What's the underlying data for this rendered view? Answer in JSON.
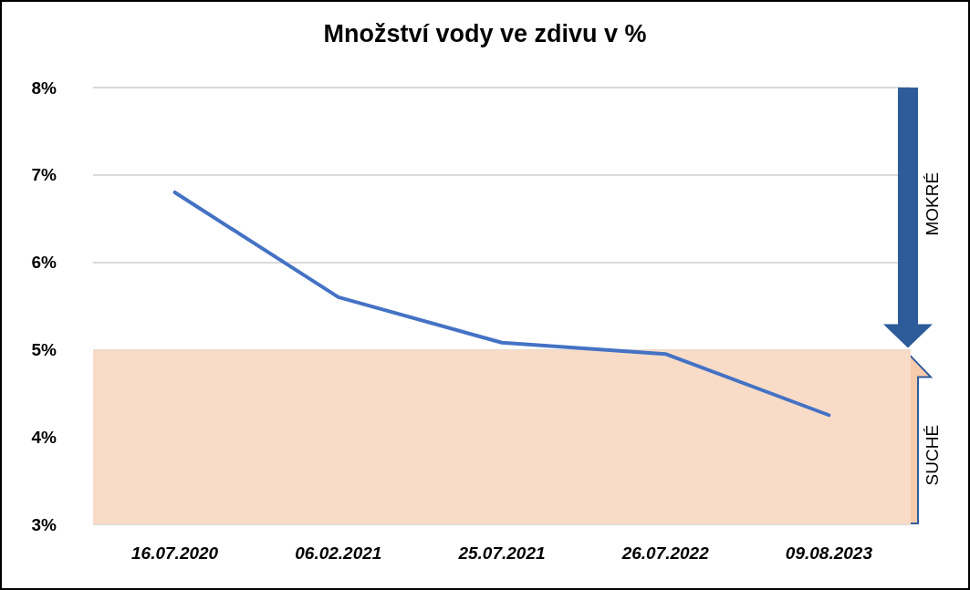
{
  "chart_data": {
    "type": "line",
    "title": "Množství vody ve zdivu v %",
    "categories": [
      "16.07.2020",
      "06.02.2021",
      "25.07.2021",
      "26.07.2022",
      "09.08.2023"
    ],
    "series": [
      {
        "color": "#4472c4",
        "values": [
          6.8,
          5.6,
          5.08,
          4.95,
          4.25
        ]
      }
    ],
    "ylim": [
      3,
      8
    ],
    "yticks": [
      {
        "value": 3,
        "label": "3%"
      },
      {
        "value": 4,
        "label": "4%"
      },
      {
        "value": 5,
        "label": "5%"
      },
      {
        "value": 6,
        "label": "6%"
      },
      {
        "value": 7,
        "label": "7%"
      },
      {
        "value": 8,
        "label": "8%"
      }
    ],
    "grid": "y",
    "marker": "none",
    "line_style": "solid",
    "bands": [
      {
        "axis": "y",
        "from": 3,
        "to": 5,
        "label": "SUCHÉ",
        "color": "#f8dcc8"
      }
    ],
    "annotations": [
      "MOKRÉ"
    ]
  }
}
